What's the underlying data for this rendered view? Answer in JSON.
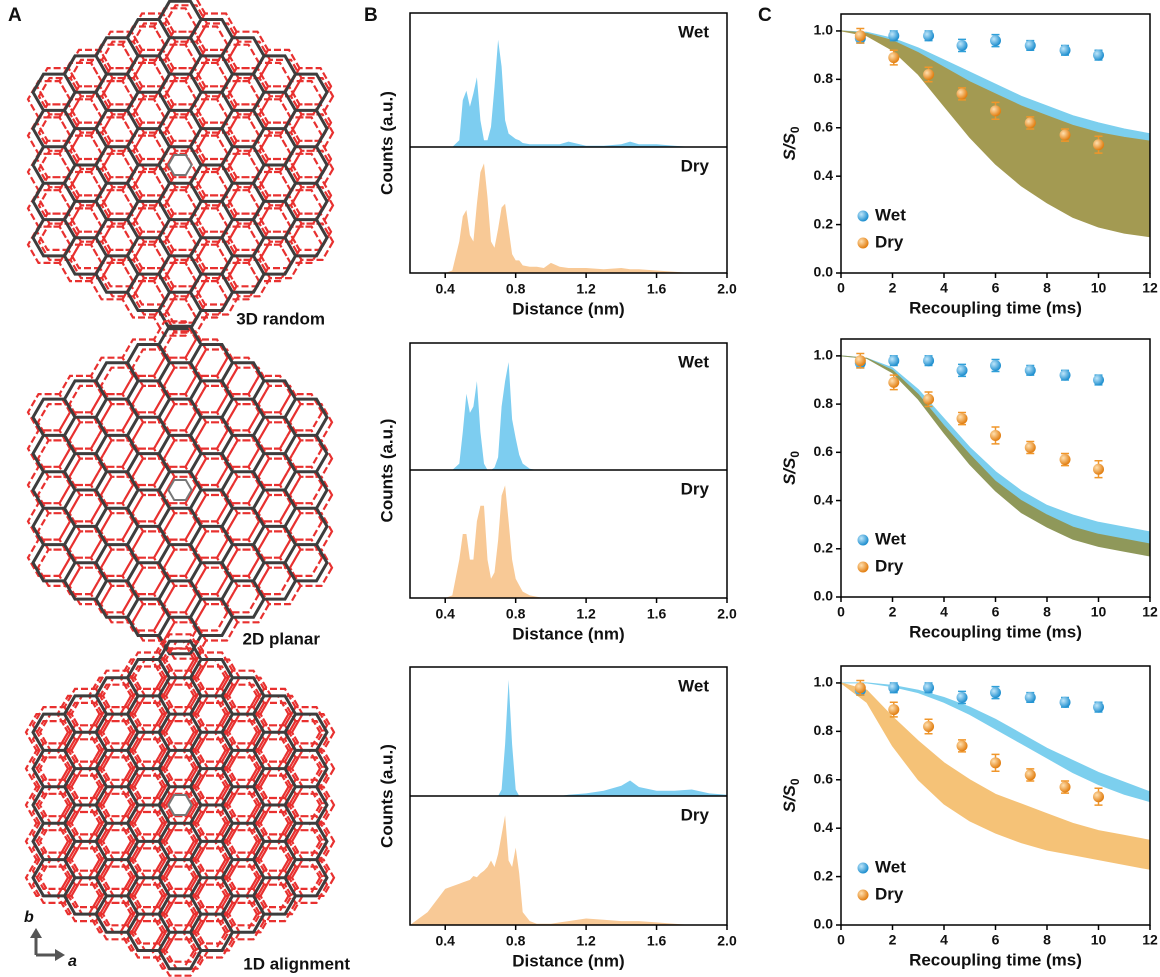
{
  "panel_labels": [
    "A",
    "B",
    "C"
  ],
  "structures": [
    "3D random",
    "2D planar",
    "1D alignment"
  ],
  "axis_arrows": {
    "a": "a",
    "b": "b"
  },
  "chart_data": [
    {
      "type": "area",
      "xlabel": "Distance (nm)",
      "ylabel": "Counts (a.u.)",
      "xlim": [
        0.2,
        2.0
      ],
      "xticks": [
        0.4,
        0.8,
        1.2,
        1.6,
        {
          "value": 2,
          "label": "2.0"
        }
      ],
      "ylim": [
        0,
        1
      ],
      "x": [
        0.2,
        0.3,
        0.4,
        0.44,
        0.48,
        0.5,
        0.52,
        0.54,
        0.56,
        0.58,
        0.6,
        0.62,
        0.64,
        0.66,
        0.68,
        0.7,
        0.72,
        0.74,
        0.76,
        0.78,
        0.8,
        0.82,
        0.84,
        0.88,
        0.92,
        0.96,
        1.0,
        1.05,
        1.1,
        1.2,
        1.3,
        1.4,
        1.45,
        1.5,
        1.6,
        1.7,
        1.8,
        1.9,
        2.0
      ],
      "series": [
        {
          "name": "Wet",
          "color": "#7dcdf0",
          "values": [
            0,
            0,
            0,
            0,
            0.05,
            0.35,
            0.42,
            0.3,
            0.4,
            0.52,
            0.2,
            0.05,
            0.05,
            0.15,
            0.45,
            0.8,
            0.6,
            0.2,
            0.1,
            0.08,
            0.06,
            0.05,
            0.03,
            0.02,
            0.02,
            0.02,
            0.02,
            0.02,
            0.04,
            0.01,
            0.01,
            0.02,
            0.04,
            0.02,
            0.02,
            0.01,
            0,
            0,
            0
          ]
        },
        {
          "name": "Dry",
          "color": "#f8c996",
          "values": [
            0,
            0,
            0,
            0.02,
            0.25,
            0.45,
            0.5,
            0.3,
            0.25,
            0.55,
            0.8,
            0.87,
            0.6,
            0.25,
            0.2,
            0.35,
            0.52,
            0.55,
            0.35,
            0.15,
            0.1,
            0.1,
            0.06,
            0.05,
            0.05,
            0.04,
            0.08,
            0.05,
            0.04,
            0.04,
            0.03,
            0.04,
            0.03,
            0.03,
            0.02,
            0.01,
            0,
            0,
            0
          ]
        }
      ]
    },
    {
      "type": "area",
      "xlabel": "Distance (nm)",
      "ylabel": "Counts (a.u.)",
      "xlim": [
        0.2,
        2.0
      ],
      "xticks": [
        0.4,
        0.8,
        1.2,
        1.6,
        {
          "value": 2,
          "label": "2.0"
        }
      ],
      "ylim": [
        0,
        1
      ],
      "x": [
        0.2,
        0.3,
        0.4,
        0.44,
        0.48,
        0.5,
        0.52,
        0.54,
        0.56,
        0.58,
        0.6,
        0.62,
        0.64,
        0.66,
        0.68,
        0.7,
        0.72,
        0.74,
        0.76,
        0.78,
        0.8,
        0.82,
        0.84,
        0.88,
        0.92,
        0.96,
        1.0,
        1.05,
        1.1,
        1.2,
        1.3,
        1.4,
        1.45,
        1.5,
        1.6,
        1.7,
        1.8,
        1.9,
        2.0
      ],
      "series": [
        {
          "name": "Wet",
          "color": "#7dcdf0",
          "values": [
            0,
            0,
            0,
            0,
            0.05,
            0.3,
            0.6,
            0.45,
            0.5,
            0.7,
            0.3,
            0.05,
            0,
            0,
            0.02,
            0.1,
            0.5,
            0.7,
            0.85,
            0.4,
            0.25,
            0.12,
            0.05,
            0.01,
            0,
            0,
            0,
            0,
            0,
            0,
            0,
            0,
            0,
            0,
            0,
            0,
            0,
            0,
            0
          ]
        },
        {
          "name": "Dry",
          "color": "#f8c996",
          "values": [
            0,
            0,
            0,
            0.02,
            0.3,
            0.5,
            0.5,
            0.3,
            0.3,
            0.6,
            0.72,
            0.72,
            0.3,
            0.15,
            0.2,
            0.45,
            0.8,
            0.88,
            0.6,
            0.3,
            0.15,
            0.1,
            0.05,
            0.02,
            0.01,
            0,
            0,
            0,
            0,
            0,
            0,
            0,
            0,
            0,
            0,
            0,
            0,
            0,
            0
          ]
        }
      ]
    },
    {
      "type": "area",
      "xlabel": "Distance (nm)",
      "ylabel": "Counts (a.u.)",
      "xlim": [
        0.2,
        2.0
      ],
      "xticks": [
        0.4,
        0.8,
        1.2,
        1.6,
        {
          "value": 2,
          "label": "2.0"
        }
      ],
      "ylim": [
        0,
        1
      ],
      "x": [
        0.2,
        0.3,
        0.4,
        0.44,
        0.48,
        0.5,
        0.52,
        0.54,
        0.56,
        0.58,
        0.6,
        0.62,
        0.64,
        0.66,
        0.68,
        0.7,
        0.72,
        0.74,
        0.76,
        0.78,
        0.8,
        0.82,
        0.84,
        0.88,
        0.92,
        0.96,
        1.0,
        1.05,
        1.1,
        1.2,
        1.3,
        1.4,
        1.45,
        1.5,
        1.6,
        1.7,
        1.8,
        1.9,
        2.0
      ],
      "series": [
        {
          "name": "Wet",
          "color": "#7dcdf0",
          "values": [
            0,
            0,
            0,
            0,
            0,
            0,
            0,
            0,
            0,
            0,
            0,
            0,
            0,
            0,
            0,
            0,
            0.05,
            0.4,
            0.9,
            0.4,
            0.05,
            0,
            0,
            0,
            0,
            0,
            0,
            0,
            0.01,
            0.02,
            0.04,
            0.08,
            0.12,
            0.07,
            0.04,
            0.04,
            0.05,
            0.02,
            0.01
          ]
        },
        {
          "name": "Dry",
          "color": "#f8c996",
          "values": [
            0,
            0.1,
            0.28,
            0.3,
            0.32,
            0.33,
            0.34,
            0.35,
            0.38,
            0.37,
            0.4,
            0.42,
            0.45,
            0.5,
            0.45,
            0.55,
            0.7,
            0.85,
            0.5,
            0.45,
            0.6,
            0.4,
            0.1,
            0.03,
            0.01,
            0.01,
            0.01,
            0.02,
            0.03,
            0.05,
            0.04,
            0.03,
            0.03,
            0.03,
            0.02,
            0.01,
            0,
            0,
            0
          ]
        }
      ]
    },
    {
      "type": "scatter",
      "xlabel": "Recoupling time (ms)",
      "ylabel": "S/S",
      "ylabel_subscript": "0",
      "xlim": [
        0,
        12
      ],
      "xticks": [
        0,
        2,
        4,
        6,
        8,
        10,
        12
      ],
      "ylim": [
        0,
        1.07
      ],
      "yticks": [
        {
          "value": 0,
          "label": "0.0"
        },
        0.2,
        0.4,
        0.6,
        0.8,
        {
          "value": 1,
          "label": "1.0"
        }
      ],
      "legend": "lower left",
      "x": [
        0.75,
        2.05,
        3.4,
        4.7,
        6.0,
        7.35,
        8.7,
        10.0
      ],
      "series": [
        {
          "name": "Wet",
          "color": "#2f9fd8",
          "values": [
            0.97,
            0.98,
            0.98,
            0.94,
            0.96,
            0.94,
            0.92,
            0.9
          ],
          "errors": [
            0.02,
            0.02,
            0.02,
            0.025,
            0.025,
            0.02,
            0.02,
            0.02
          ]
        },
        {
          "name": "Dry",
          "color": "#f0962a",
          "values": [
            0.98,
            0.89,
            0.82,
            0.74,
            0.67,
            0.62,
            0.57,
            0.53
          ],
          "errors": [
            0.03,
            0.03,
            0.03,
            0.025,
            0.035,
            0.025,
            0.025,
            0.035
          ]
        }
      ],
      "bands": [
        {
          "color": "#7ccfee",
          "x": [
            0,
            1,
            2,
            3,
            4,
            5,
            6,
            7,
            8,
            9,
            10,
            11,
            12
          ],
          "upper": [
            1,
            0.995,
            0.97,
            0.93,
            0.88,
            0.83,
            0.78,
            0.73,
            0.69,
            0.65,
            0.62,
            0.595,
            0.575
          ],
          "lower": [
            1,
            0.99,
            0.96,
            0.91,
            0.85,
            0.79,
            0.74,
            0.69,
            0.65,
            0.61,
            0.58,
            0.56,
            0.545
          ]
        },
        {
          "color": "#a39a52",
          "x": [
            0,
            1,
            2,
            3,
            4,
            5,
            6,
            7,
            8,
            9,
            10,
            11,
            12
          ],
          "upper": [
            1,
            0.99,
            0.96,
            0.91,
            0.85,
            0.79,
            0.74,
            0.69,
            0.65,
            0.61,
            0.58,
            0.56,
            0.545
          ],
          "lower": [
            1,
            0.98,
            0.92,
            0.82,
            0.69,
            0.56,
            0.45,
            0.36,
            0.29,
            0.23,
            0.19,
            0.165,
            0.15
          ]
        }
      ]
    },
    {
      "type": "scatter",
      "xlabel": "Recoupling time (ms)",
      "ylabel": "S/S",
      "ylabel_subscript": "0",
      "xlim": [
        0,
        12
      ],
      "xticks": [
        0,
        2,
        4,
        6,
        8,
        10,
        12
      ],
      "ylim": [
        0,
        1.07
      ],
      "yticks": [
        {
          "value": 0,
          "label": "0.0"
        },
        0.2,
        0.4,
        0.6,
        0.8,
        {
          "value": 1,
          "label": "1.0"
        }
      ],
      "legend": "lower left",
      "x": [
        0.75,
        2.05,
        3.4,
        4.7,
        6.0,
        7.35,
        8.7,
        10.0
      ],
      "series": [
        {
          "name": "Wet",
          "color": "#2f9fd8",
          "values": [
            0.97,
            0.98,
            0.98,
            0.94,
            0.96,
            0.94,
            0.92,
            0.9
          ],
          "errors": [
            0.02,
            0.02,
            0.02,
            0.025,
            0.025,
            0.02,
            0.02,
            0.02
          ]
        },
        {
          "name": "Dry",
          "color": "#f0962a",
          "values": [
            0.98,
            0.89,
            0.82,
            0.74,
            0.67,
            0.62,
            0.57,
            0.53
          ],
          "errors": [
            0.03,
            0.03,
            0.03,
            0.025,
            0.035,
            0.025,
            0.025,
            0.035
          ]
        }
      ],
      "bands": [
        {
          "color": "#7ccfee",
          "x": [
            0,
            1,
            2,
            3,
            4,
            5,
            6,
            7,
            8,
            9,
            10,
            11,
            12
          ],
          "upper": [
            1,
            0.99,
            0.95,
            0.86,
            0.74,
            0.62,
            0.52,
            0.44,
            0.38,
            0.34,
            0.31,
            0.29,
            0.27
          ],
          "lower": [
            1,
            0.99,
            0.94,
            0.84,
            0.71,
            0.59,
            0.48,
            0.4,
            0.34,
            0.29,
            0.25,
            0.23,
            0.21
          ]
        },
        {
          "color": "#8f985a",
          "x": [
            0,
            1,
            2,
            3,
            4,
            5,
            6,
            7,
            8,
            9,
            10,
            11,
            12
          ],
          "upper": [
            1,
            0.99,
            0.94,
            0.84,
            0.71,
            0.59,
            0.48,
            0.4,
            0.34,
            0.29,
            0.26,
            0.24,
            0.22
          ],
          "lower": [
            1,
            0.99,
            0.93,
            0.82,
            0.68,
            0.55,
            0.44,
            0.35,
            0.29,
            0.24,
            0.21,
            0.19,
            0.17
          ]
        }
      ]
    },
    {
      "type": "scatter",
      "xlabel": "Recoupling time (ms)",
      "ylabel": "S/S",
      "ylabel_subscript": "0",
      "xlim": [
        0,
        12
      ],
      "xticks": [
        0,
        2,
        4,
        6,
        8,
        10,
        12
      ],
      "ylim": [
        0,
        1.07
      ],
      "yticks": [
        {
          "value": 0,
          "label": "0.0"
        },
        0.2,
        0.4,
        0.6,
        0.8,
        {
          "value": 1,
          "label": "1.0"
        }
      ],
      "legend": "lower left",
      "x": [
        0.75,
        2.05,
        3.4,
        4.7,
        6.0,
        7.35,
        8.7,
        10.0
      ],
      "series": [
        {
          "name": "Wet",
          "color": "#2f9fd8",
          "values": [
            0.97,
            0.98,
            0.98,
            0.94,
            0.96,
            0.94,
            0.92,
            0.9
          ],
          "errors": [
            0.02,
            0.02,
            0.02,
            0.025,
            0.025,
            0.02,
            0.02,
            0.02
          ]
        },
        {
          "name": "Dry",
          "color": "#f0962a",
          "values": [
            0.98,
            0.89,
            0.82,
            0.74,
            0.67,
            0.62,
            0.57,
            0.53
          ],
          "errors": [
            0.03,
            0.03,
            0.03,
            0.025,
            0.035,
            0.025,
            0.025,
            0.035
          ]
        }
      ],
      "bands": [
        {
          "color": "#7ccfee",
          "x": [
            0,
            1,
            2,
            3,
            4,
            5,
            6,
            7,
            8,
            9,
            10,
            11,
            12
          ],
          "upper": [
            1,
            1,
            0.99,
            0.97,
            0.94,
            0.9,
            0.85,
            0.79,
            0.73,
            0.68,
            0.63,
            0.59,
            0.55
          ],
          "lower": [
            1,
            1,
            0.985,
            0.96,
            0.92,
            0.87,
            0.81,
            0.75,
            0.69,
            0.63,
            0.58,
            0.54,
            0.51
          ]
        },
        {
          "color": "#f5c277",
          "x": [
            0,
            1,
            2,
            3,
            4,
            5,
            6,
            7,
            8,
            9,
            10,
            11,
            12
          ],
          "upper": [
            1,
            0.97,
            0.86,
            0.76,
            0.67,
            0.6,
            0.54,
            0.5,
            0.46,
            0.42,
            0.39,
            0.37,
            0.35
          ],
          "lower": [
            1,
            0.92,
            0.74,
            0.6,
            0.5,
            0.43,
            0.38,
            0.34,
            0.31,
            0.29,
            0.27,
            0.25,
            0.23
          ]
        }
      ]
    }
  ]
}
